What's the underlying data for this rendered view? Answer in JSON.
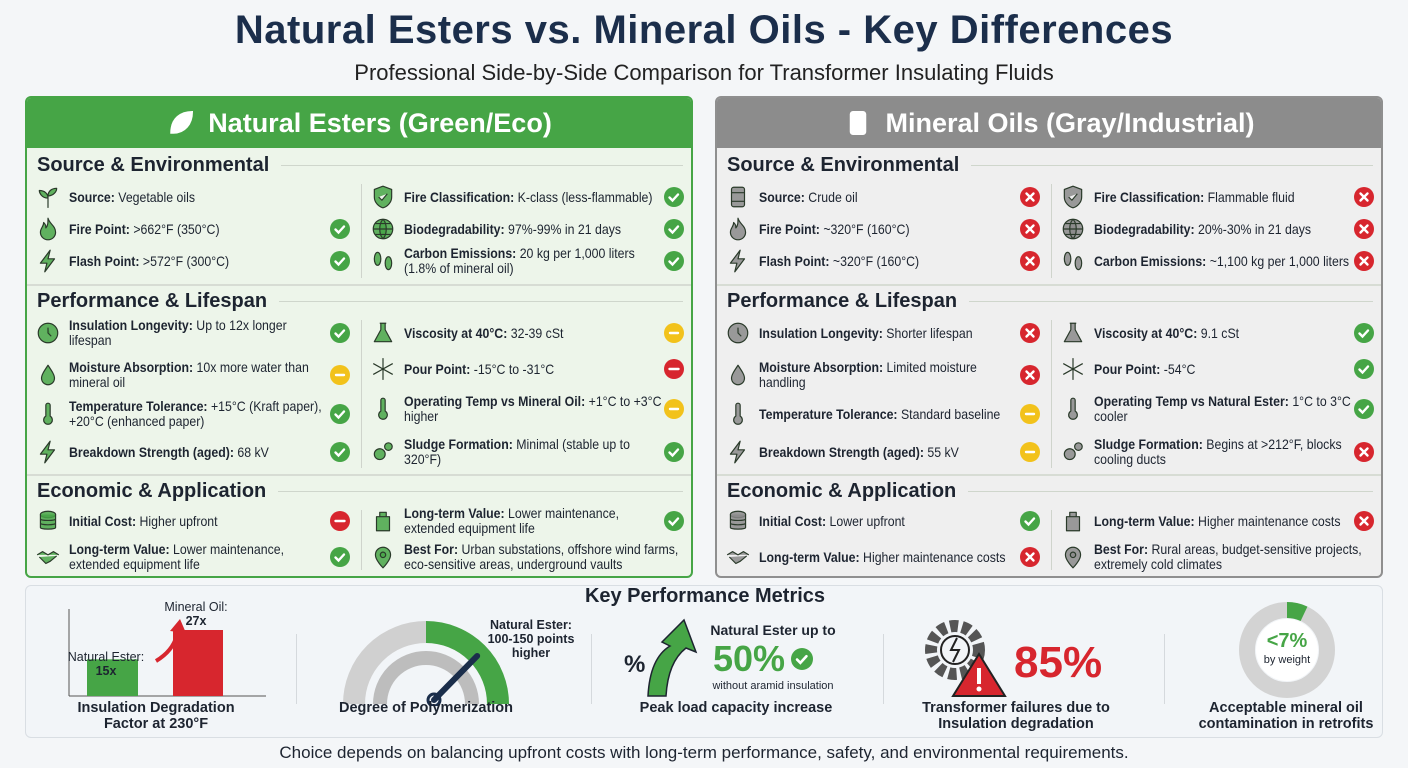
{
  "header": {
    "title": "Natural Esters vs. Mineral Oils - Key Differences",
    "subtitle": "Professional Side-by-Side Comparison for Transformer Insulating Fluids"
  },
  "colors": {
    "green": "#46a546",
    "gray": "#8c8c8c",
    "red": "#d7262e",
    "yellow": "#f2c21b",
    "navy": "#1b2e4b"
  },
  "panels": [
    {
      "title": "Natural Esters (Green/Eco)",
      "icon": "leaf-icon",
      "theme": "green",
      "sections": [
        {
          "title": "Source & Environmental",
          "left": [
            {
              "icon": "sprout",
              "label": "Source:",
              "value": "Vegetable oils",
              "status": "none"
            },
            {
              "icon": "flame",
              "label": "Fire Point:",
              "value": ">662°F (350°C)",
              "status": "check"
            },
            {
              "icon": "bolt",
              "label": "Flash Point:",
              "value": ">572°F (300°C)",
              "status": "check"
            }
          ],
          "right": [
            {
              "icon": "shield",
              "label": "Fire Classification:",
              "value": "K-class (less-flammable)",
              "status": "check"
            },
            {
              "icon": "globe",
              "label": "Biodegradability:",
              "value": "97%-99% in 21 days",
              "status": "check"
            },
            {
              "icon": "footprints",
              "label": "Carbon Emissions:",
              "value": "20 kg per 1,000 liters (1.8% of mineral oil)",
              "status": "check"
            }
          ]
        },
        {
          "title": "Performance & Lifespan",
          "left": [
            {
              "icon": "clock",
              "label": "Insulation Longevity:",
              "value": "Up to 12x longer lifespan",
              "status": "check"
            },
            {
              "icon": "drop",
              "label": "Moisture Absorption:",
              "value": "10x more water than mineral oil",
              "status": "neutral"
            },
            {
              "icon": "thermometer",
              "label": "Temperature Tolerance:",
              "value": "+15°C (Kraft paper), +20°C (enhanced paper)",
              "status": "check"
            },
            {
              "icon": "bolt",
              "label": "Breakdown Strength (aged):",
              "value": "68 kV",
              "status": "check"
            }
          ],
          "right": [
            {
              "icon": "flask",
              "label": "Viscosity at 40°C:",
              "value": "32-39 cSt",
              "status": "neutral"
            },
            {
              "icon": "snowflake",
              "label": "Pour Point:",
              "value": "-15°C to -31°C",
              "status": "minus"
            },
            {
              "icon": "thermometer",
              "label": "Operating Temp vs Mineral Oil:",
              "value": "+1°C to +3°C higher",
              "status": "neutral"
            },
            {
              "icon": "gears",
              "label": "Sludge Formation:",
              "value": "Minimal (stable up to 320°F)",
              "status": "check"
            }
          ]
        },
        {
          "title": "Economic & Application",
          "left": [
            {
              "icon": "coins",
              "label": "Initial Cost:",
              "value": "Higher upfront",
              "status": "minus"
            },
            {
              "icon": "handshake",
              "label": "Long-term Value:",
              "value": "Lower maintenance, extended equipment life",
              "status": "check"
            }
          ],
          "right": [
            {
              "icon": "jug",
              "label": "Long-term Value:",
              "value": "Lower maintenance, extended equipment life",
              "status": "check"
            },
            {
              "icon": "pin",
              "label": "Best For:",
              "value": "Urban substations, offshore wind farms, eco-sensitive areas, underground vaults",
              "status": "none"
            }
          ]
        }
      ]
    },
    {
      "title": "Mineral Oils (Gray/Industrial)",
      "icon": "oil-barrel-icon",
      "theme": "gray",
      "sections": [
        {
          "title": "Source & Environmental",
          "left": [
            {
              "icon": "barrel",
              "label": "Source:",
              "value": "Crude oil",
              "status": "cross"
            },
            {
              "icon": "flame",
              "label": "Fire Point:",
              "value": "~320°F (160°C)",
              "status": "cross"
            },
            {
              "icon": "bolt",
              "label": "Flash Point:",
              "value": "~320°F (160°C)",
              "status": "cross"
            }
          ],
          "right": [
            {
              "icon": "shield",
              "label": "Fire Classification:",
              "value": "Flammable fluid",
              "status": "cross"
            },
            {
              "icon": "globe",
              "label": "Biodegradability:",
              "value": "20%-30% in 21 days",
              "status": "cross"
            },
            {
              "icon": "footprints",
              "label": "Carbon Emissions:",
              "value": "~1,100 kg per 1,000 liters",
              "status": "cross"
            }
          ]
        },
        {
          "title": "Performance & Lifespan",
          "left": [
            {
              "icon": "clock",
              "label": "Insulation Longevity:",
              "value": "Shorter lifespan",
              "status": "cross"
            },
            {
              "icon": "drop",
              "label": "Moisture Absorption:",
              "value": "Limited moisture handling",
              "status": "cross"
            },
            {
              "icon": "thermometer",
              "label": "Temperature Tolerance:",
              "value": "Standard baseline",
              "status": "neutral"
            },
            {
              "icon": "bolt",
              "label": "Breakdown Strength (aged):",
              "value": "55 kV",
              "status": "neutral"
            }
          ],
          "right": [
            {
              "icon": "flask",
              "label": "Viscosity at 40°C:",
              "value": "9.1 cSt",
              "status": "check"
            },
            {
              "icon": "snowflake",
              "label": "Pour Point:",
              "value": "-54°C",
              "status": "check"
            },
            {
              "icon": "thermometer",
              "label": "Operating Temp vs Natural Ester:",
              "value": "1°C to 3°C cooler",
              "status": "check"
            },
            {
              "icon": "gears",
              "label": "Sludge Formation:",
              "value": "Begins at >212°F, blocks cooling ducts",
              "status": "cross"
            }
          ]
        },
        {
          "title": "Economic & Application",
          "left": [
            {
              "icon": "coins",
              "label": "Initial Cost:",
              "value": "Lower upfront",
              "status": "check"
            },
            {
              "icon": "handshake",
              "label": "Long-term Value:",
              "value": "Higher maintenance costs",
              "status": "cross"
            }
          ],
          "right": [
            {
              "icon": "jug",
              "label": "Long-term Value:",
              "value": "Higher maintenance costs",
              "status": "cross"
            },
            {
              "icon": "pin",
              "label": "Best For:",
              "value": "Rural areas, budget-sensitive projects, extremely cold climates",
              "status": "none"
            }
          ]
        }
      ]
    }
  ],
  "metrics": {
    "title": "Key Performance Metrics",
    "degradation": {
      "label": "Insulation Degradation Factor at 230°F",
      "bars": [
        {
          "name": "Natural Ester:",
          "value": 15,
          "text": "15x",
          "color": "#46a546"
        },
        {
          "name": "Mineral Oil:",
          "value": 27,
          "text": "27x",
          "color": "#d7262e"
        }
      ]
    },
    "polymerization": {
      "label": "Degree of Polymerization",
      "note": "Natural Ester: 100-150 points higher",
      "level": 0.6
    },
    "peak_load": {
      "label": "Peak load capacity increase",
      "lead": "Natural Ester up to",
      "value": "50%",
      "note": "without aramid insulation",
      "symbol": "%"
    },
    "failures": {
      "label": "Transformer failures due to Insulation degradation",
      "value": "85%"
    },
    "contamination": {
      "label": "Acceptable mineral oil contamination in retrofits",
      "value": "<7%",
      "unit": "by weight",
      "fraction": 0.07
    }
  },
  "footer": "Choice depends on balancing upfront costs with long-term performance, safety, and environmental requirements."
}
